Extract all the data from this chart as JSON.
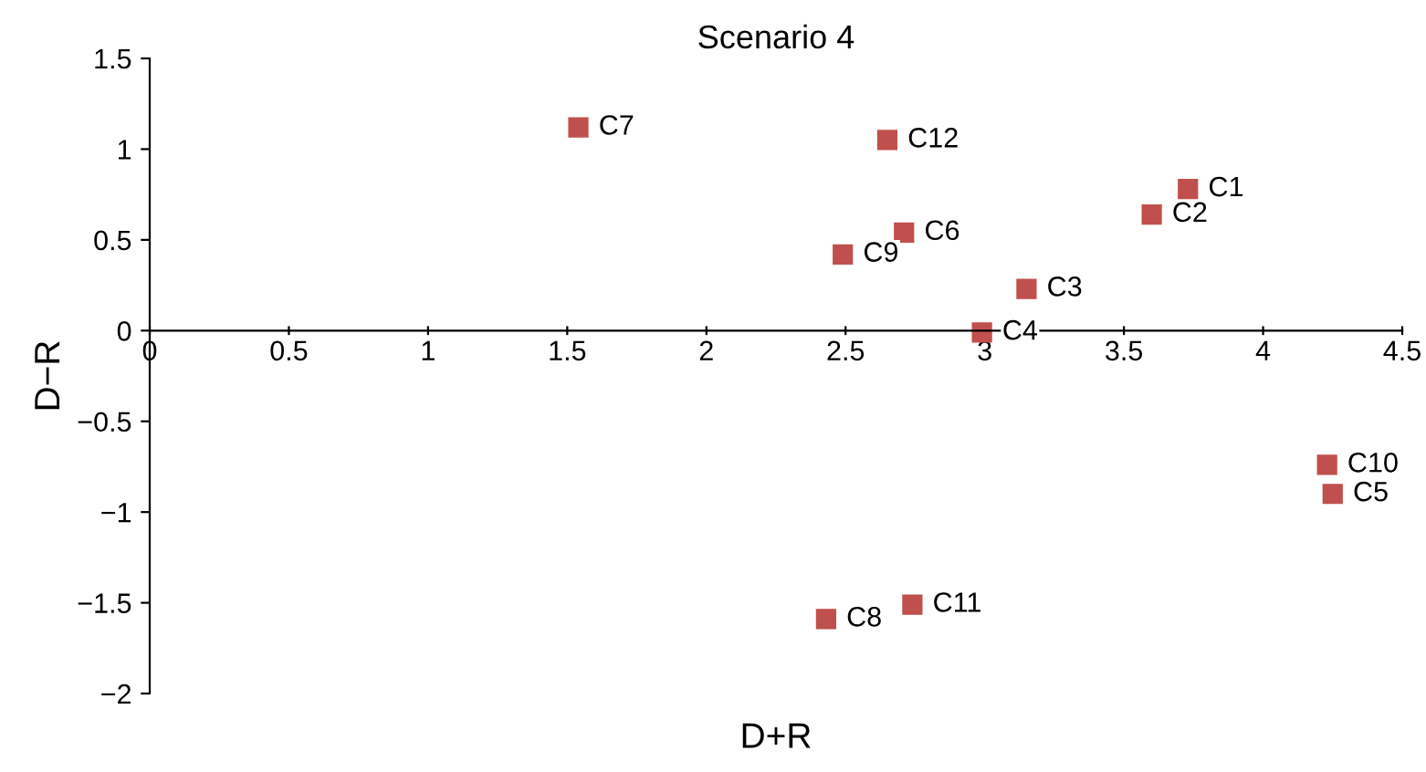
{
  "chart_data": {
    "type": "scatter",
    "title": "Scenario 4",
    "xlabel": "D+R",
    "ylabel": "D−R",
    "series": [
      {
        "color": "#c0504d",
        "x": [
          3.73,
          3.6,
          3.15,
          2.99,
          4.25,
          2.71,
          1.54,
          2.43,
          2.49,
          4.23,
          2.74,
          2.65
        ],
        "values": [
          0.78,
          0.64,
          0.23,
          -0.01,
          -0.9,
          0.54,
          1.12,
          -1.59,
          0.42,
          -0.74,
          -1.51,
          1.05
        ]
      }
    ],
    "annotations": [
      {
        "text": "C1",
        "x": 3.73,
        "y": 0.78
      },
      {
        "text": "C2",
        "x": 3.6,
        "y": 0.64
      },
      {
        "text": "C3",
        "x": 3.15,
        "y": 0.23
      },
      {
        "text": "C4",
        "x": 2.99,
        "y": -0.01
      },
      {
        "text": "C5",
        "x": 4.25,
        "y": -0.9
      },
      {
        "text": "C6",
        "x": 2.71,
        "y": 0.54
      },
      {
        "text": "C7",
        "x": 1.54,
        "y": 1.12
      },
      {
        "text": "C8",
        "x": 2.43,
        "y": -1.59
      },
      {
        "text": "C9",
        "x": 2.49,
        "y": 0.42
      },
      {
        "text": "C10",
        "x": 4.23,
        "y": -0.74
      },
      {
        "text": "C11",
        "x": 2.74,
        "y": -1.51
      },
      {
        "text": "C12",
        "x": 2.65,
        "y": 1.05
      }
    ],
    "xlim": [
      0,
      4.5
    ],
    "ylim": [
      -2,
      1.5
    ],
    "xticks": [
      0,
      0.5,
      1,
      1.5,
      2,
      2.5,
      3,
      3.5,
      4,
      4.5
    ],
    "yticks": [
      {
        "value": -2,
        "label": "−2"
      },
      {
        "value": -1.5,
        "label": "−1.5"
      },
      {
        "value": -1,
        "label": "−1"
      },
      {
        "value": -0.5,
        "label": "−0.5"
      },
      0,
      0.5,
      1,
      1.5
    ],
    "marker": "square",
    "grid": false,
    "legend": false
  }
}
